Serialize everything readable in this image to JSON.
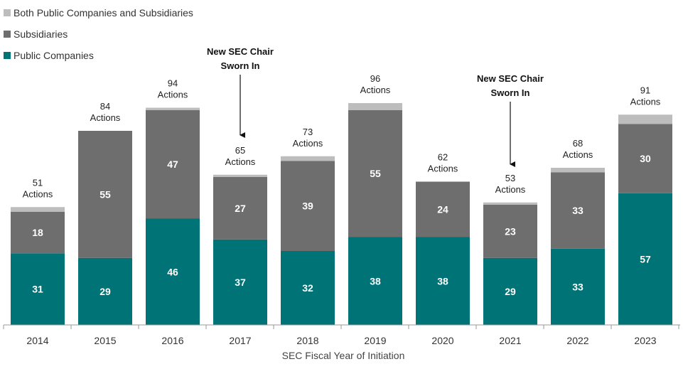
{
  "chart_data": {
    "type": "bar",
    "stacked": true,
    "categories": [
      "2014",
      "2015",
      "2016",
      "2017",
      "2018",
      "2019",
      "2020",
      "2021",
      "2022",
      "2023"
    ],
    "series": [
      {
        "name": "Public Companies",
        "color": "#007377",
        "values": [
          31,
          29,
          46,
          37,
          32,
          38,
          38,
          29,
          33,
          57
        ]
      },
      {
        "name": "Subsidiaries",
        "color": "#6e6e6e",
        "values": [
          18,
          55,
          47,
          27,
          39,
          55,
          24,
          23,
          33,
          30
        ]
      },
      {
        "name": "Both Public Companies and Subsidiaries",
        "color": "#bdbdbd",
        "values": [
          2,
          0,
          1,
          1,
          2,
          3,
          0,
          1,
          2,
          4
        ]
      }
    ],
    "totals": [
      "51",
      "84",
      "94",
      "65",
      "73",
      "96",
      "62",
      "53",
      "68",
      "91"
    ],
    "totals_suffix": "Actions",
    "legend": [
      "Both Public Companies and Subsidiaries",
      "Subsidiaries",
      "Public Companies"
    ],
    "legend_position": "top-left",
    "xlabel": "SEC Fiscal Year of Initiation",
    "ylabel": "",
    "ylim": [
      0,
      100
    ],
    "grid": false,
    "annotations": [
      {
        "category": "2017",
        "lines": [
          "New SEC Chair",
          "Sworn In"
        ]
      },
      {
        "category": "2021",
        "lines": [
          "New SEC Chair",
          "Sworn In"
        ]
      }
    ]
  }
}
